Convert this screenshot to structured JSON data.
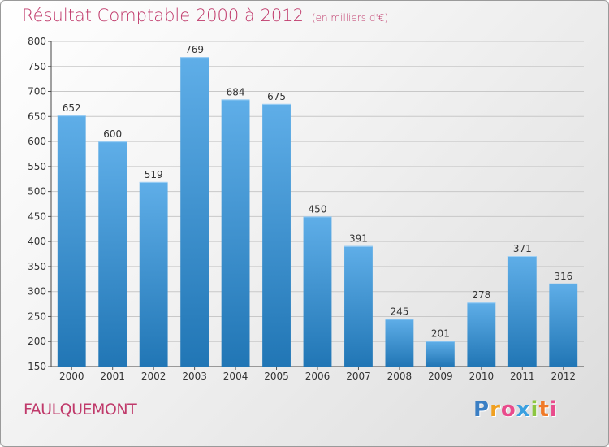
{
  "chart_data": {
    "type": "bar",
    "title": "Résultat Comptable 2000 à 2012",
    "subtitle": "(en milliers d'€)",
    "categories": [
      "2000",
      "2001",
      "2002",
      "2003",
      "2004",
      "2005",
      "2006",
      "2007",
      "2008",
      "2009",
      "2010",
      "2011",
      "2012"
    ],
    "values": [
      652,
      600,
      519,
      769,
      684,
      675,
      450,
      391,
      245,
      201,
      278,
      371,
      316
    ],
    "ylim": [
      150,
      800
    ],
    "yticks": [
      150,
      200,
      250,
      300,
      350,
      400,
      450,
      500,
      550,
      600,
      650,
      700,
      750,
      800
    ],
    "xlabel": "",
    "ylabel": "",
    "grid": true
  },
  "location": "FAULQUEMONT",
  "brand": {
    "letters": [
      "P",
      "r",
      "o",
      "x",
      "i",
      "t",
      "i"
    ],
    "colors": [
      "#3b7fc4",
      "#f0a020",
      "#e94b8c",
      "#3aa0e0",
      "#8cc640",
      "#f07a28",
      "#e94b8c"
    ]
  },
  "colors": {
    "bar_light": "#5faee8",
    "bar_dark": "#2176b5",
    "accent": "#c03a6b"
  }
}
